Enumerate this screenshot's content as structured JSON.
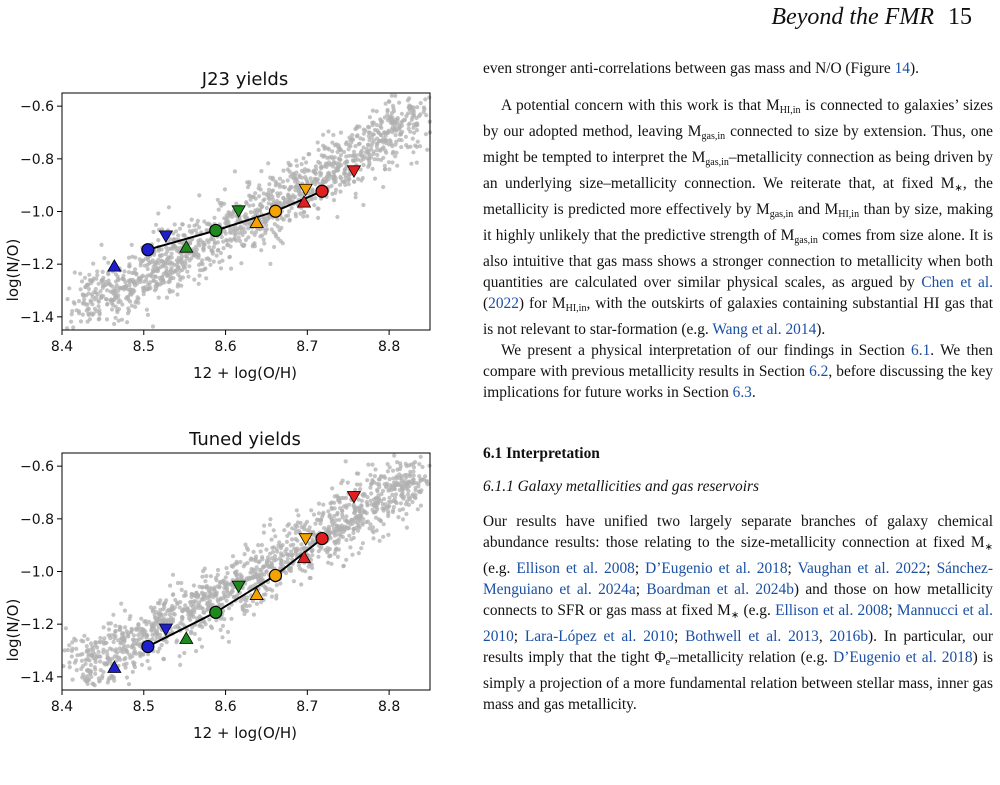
{
  "header": {
    "title": "Beyond the FMR",
    "page": "15"
  },
  "chart_data": [
    {
      "type": "scatter",
      "title": "J23 yields",
      "xlabel": "12 + log(O/H)",
      "ylabel": "log(N/O)",
      "xlim": [
        8.4,
        8.85
      ],
      "ylim": [
        -1.45,
        -0.55
      ],
      "xticks": [
        8.4,
        8.5,
        8.6,
        8.7,
        8.8
      ],
      "yticks": [
        -1.4,
        -1.2,
        -1.0,
        -0.8,
        -0.6
      ],
      "tick_labels_x": [
        "8.4",
        "8.5",
        "8.6",
        "8.7",
        "8.8"
      ],
      "tick_labels_y": [
        "−1.4",
        "−1.2",
        "−1.0",
        "−0.8",
        "−0.6"
      ],
      "grid": false,
      "background_cloud": {
        "color": "#b0b0b0",
        "trend": "N/O rises from about -1.35 at 8.42 to about -0.65 at 8.84"
      },
      "line": {
        "x": [
          8.505,
          8.588,
          8.661,
          8.718
        ],
        "y": [
          -1.145,
          -1.072,
          -0.999,
          -0.923
        ],
        "color": "#000000"
      },
      "circles": [
        {
          "x": 8.505,
          "y": -1.145,
          "color": "#1f1fd0"
        },
        {
          "x": 8.588,
          "y": -1.072,
          "color": "#1e8a1e"
        },
        {
          "x": 8.661,
          "y": -0.999,
          "color": "#f5a300"
        },
        {
          "x": 8.718,
          "y": -0.923,
          "color": "#e02020"
        }
      ],
      "triangles_up": [
        {
          "x": 8.464,
          "y": -1.208,
          "color": "#1f1fd0"
        },
        {
          "x": 8.552,
          "y": -1.136,
          "color": "#1e8a1e"
        },
        {
          "x": 8.638,
          "y": -1.042,
          "color": "#f5a300"
        },
        {
          "x": 8.696,
          "y": -0.965,
          "color": "#e02020"
        }
      ],
      "triangles_down": [
        {
          "x": 8.527,
          "y": -1.092,
          "color": "#1f1fd0"
        },
        {
          "x": 8.616,
          "y": -0.997,
          "color": "#1e8a1e"
        },
        {
          "x": 8.698,
          "y": -0.915,
          "color": "#f5a300"
        },
        {
          "x": 8.757,
          "y": -0.845,
          "color": "#e02020"
        }
      ]
    },
    {
      "type": "scatter",
      "title": "Tuned yields",
      "xlabel": "12 + log(O/H)",
      "ylabel": "log(N/O)",
      "xlim": [
        8.4,
        8.85
      ],
      "ylim": [
        -1.45,
        -0.55
      ],
      "xticks": [
        8.4,
        8.5,
        8.6,
        8.7,
        8.8
      ],
      "yticks": [
        -1.4,
        -1.2,
        -1.0,
        -0.8,
        -0.6
      ],
      "tick_labels_x": [
        "8.4",
        "8.5",
        "8.6",
        "8.7",
        "8.8"
      ],
      "tick_labels_y": [
        "−1.4",
        "−1.2",
        "−1.0",
        "−0.8",
        "−0.6"
      ],
      "grid": false,
      "background_cloud": {
        "color": "#b0b0b0",
        "trend": "N/O rises from about -1.35 at 8.42 to about -0.65 at 8.84"
      },
      "line": {
        "x": [
          8.505,
          8.588,
          8.661,
          8.718
        ],
        "y": [
          -1.285,
          -1.155,
          -1.015,
          -0.875
        ],
        "color": "#000000"
      },
      "circles": [
        {
          "x": 8.505,
          "y": -1.285,
          "color": "#1f1fd0"
        },
        {
          "x": 8.588,
          "y": -1.155,
          "color": "#1e8a1e"
        },
        {
          "x": 8.661,
          "y": -1.015,
          "color": "#f5a300"
        },
        {
          "x": 8.718,
          "y": -0.875,
          "color": "#e02020"
        }
      ],
      "triangles_up": [
        {
          "x": 8.464,
          "y": -1.365,
          "color": "#1f1fd0"
        },
        {
          "x": 8.552,
          "y": -1.255,
          "color": "#1e8a1e"
        },
        {
          "x": 8.638,
          "y": -1.088,
          "color": "#f5a300"
        },
        {
          "x": 8.696,
          "y": -0.948,
          "color": "#e02020"
        }
      ],
      "triangles_down": [
        {
          "x": 8.527,
          "y": -1.218,
          "color": "#1f1fd0"
        },
        {
          "x": 8.616,
          "y": -1.055,
          "color": "#1e8a1e"
        },
        {
          "x": 8.698,
          "y": -0.875,
          "color": "#f5a300"
        },
        {
          "x": 8.757,
          "y": -0.715,
          "color": "#e02020"
        }
      ]
    }
  ],
  "text": {
    "p1_a": "even stronger anti-correlations between gas mass and N/O (Figure ",
    "p1_link": "14",
    "p1_b": ").",
    "p2_a": "A potential concern with this work is that M",
    "p2_sub1": "HI,in",
    "p2_b": " is connected to galaxies’ sizes by our adopted method, leaving M",
    "p2_sub2": "gas,in",
    "p2_c": " connected to size by extension. Thus, one might be tempted to interpret the M",
    "p2_sub3": "gas,in",
    "p2_d": "–metallicity connection as being driven by an underlying size–metallicity connection. We reiterate that, at fixed M",
    "p2_sub4": "∗",
    "p2_e": ", the metallicity is predicted more effectively by M",
    "p2_sub5": "gas,in",
    "p2_f": " and M",
    "p2_sub6": "HI,in",
    "p2_g": " than by size, making it highly unlikely that the predictive strength of M",
    "p2_sub7": "gas,in",
    "p2_h": " comes from size alone. It is also intuitive that gas mass shows a stronger connection to metallicity when both quantities are calculated over similar physical scales, as argued by ",
    "p2_link1": "Chen et al.",
    "p2_i": " (",
    "p2_link2": "2022",
    "p2_j": ") for M",
    "p2_sub8": "HI,in",
    "p2_k": ", with the outskirts of galaxies containing substantial HI gas that is not relevant to star-formation (e.g. ",
    "p2_link3": "Wang et al. 2014",
    "p2_l": ").",
    "p3_a": "We present a physical interpretation of our findings in Section ",
    "p3_link1": "6.1",
    "p3_b": ". We then compare with previous metallicity results in Section ",
    "p3_link2": "6.2",
    "p3_c": ", before discussing the key implications for future works in Section ",
    "p3_link3": "6.3",
    "p3_d": ".",
    "section_heading": "6.1 Interpretation",
    "subsection_heading": "6.1.1 Galaxy metallicities and gas reservoirs",
    "p4_a": "Our results have unified two largely separate branches of galaxy chemical abundance results: those relating to the size-metallicity connection at fixed M",
    "p4_sub1": "∗",
    "p4_b": " (e.g. ",
    "p4_link1": "Ellison et al. 2008",
    "p4_c": "; ",
    "p4_link2": "D’Eugenio et al. 2018",
    "p4_d": "; ",
    "p4_link3": "Vaughan et al. 2022",
    "p4_e": "; ",
    "p4_link4": "Sánchez-Menguiano et al. 2024a",
    "p4_f": "; ",
    "p4_link5": "Boardman et al. 2024b",
    "p4_g": ") and those on how metallicity connects to SFR or gas mass at fixed M",
    "p4_sub2": "∗",
    "p4_h": " (e.g. ",
    "p4_link6": "Ellison et al. 2008",
    "p4_i": "; ",
    "p4_link7": "Mannucci et al. 2010",
    "p4_j": "; ",
    "p4_link8": "Lara-López et al. 2010",
    "p4_k": "; ",
    "p4_link9": "Bothwell et al. 2013",
    "p4_l": ", ",
    "p4_link10": "2016b",
    "p4_m": "). In particular, our results imply that the tight Φ",
    "p4_sub3": "e",
    "p4_n": "–metallicity relation (e.g. ",
    "p4_link11": "D’Eugenio et al. 2018",
    "p4_o": ") is simply a projection of a more fundamental relation between stellar mass, inner gas mass and gas metallicity."
  }
}
